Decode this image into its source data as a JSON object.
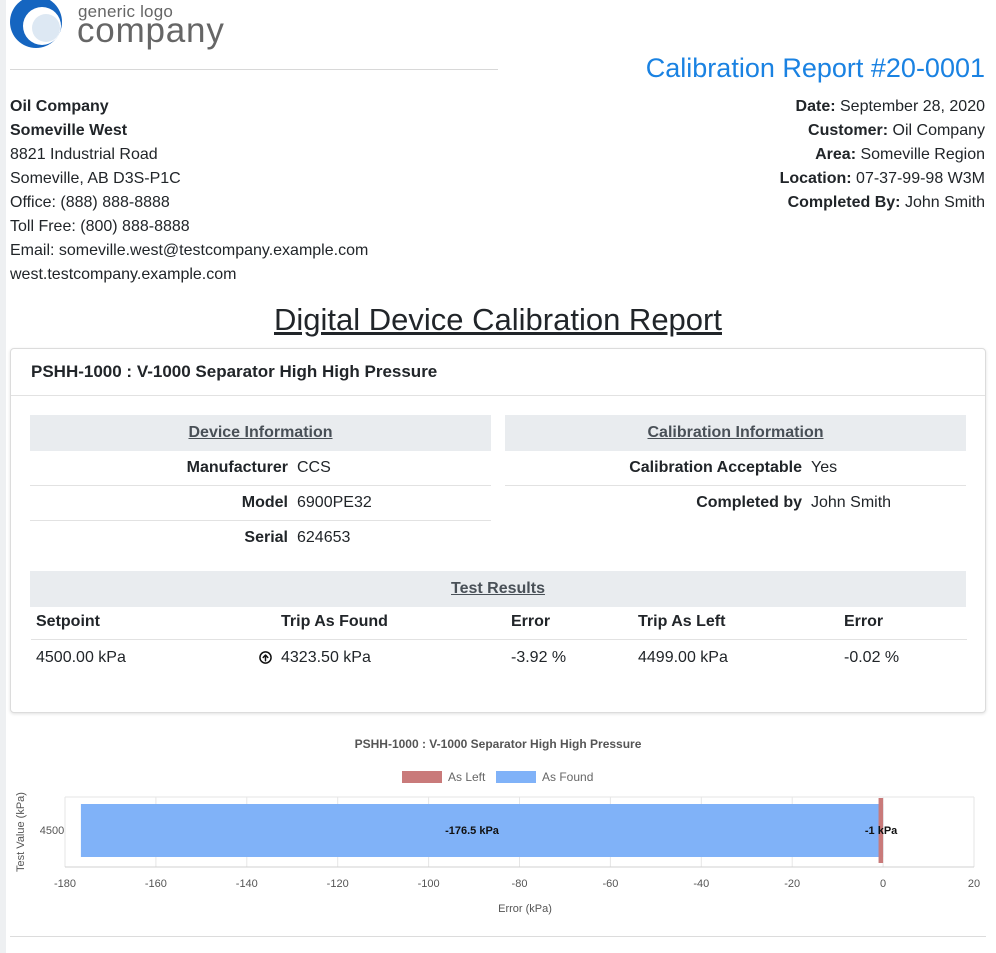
{
  "logo": {
    "small_text": "generic logo",
    "big_text": "company"
  },
  "report_title": "Calibration Report #20-0001",
  "address": {
    "company": "Oil Company",
    "branch": "Someville West",
    "street": "8821 Industrial Road",
    "city": "Someville, AB D3S-P1C",
    "office": "Office: (888) 888-8888",
    "toll_free": "Toll Free: (800) 888-8888",
    "email": "Email: someville.west@testcompany.example.com",
    "website": "west.testcompany.example.com"
  },
  "meta": [
    {
      "label": "Date:",
      "value": "September 28, 2020"
    },
    {
      "label": "Customer:",
      "value": "Oil Company"
    },
    {
      "label": "Area:",
      "value": "Someville Region"
    },
    {
      "label": "Location:",
      "value": "07-37-99-98 W3M"
    },
    {
      "label": "Completed By:",
      "value": "John Smith"
    }
  ],
  "document_title": "Digital Device Calibration Report",
  "device": {
    "name": "PSHH-1000 : V-1000 Separator High High Pressure",
    "device_info": {
      "heading": "Device Information",
      "rows": [
        {
          "label": "Manufacturer",
          "value": "CCS"
        },
        {
          "label": "Model",
          "value": "6900PE32"
        },
        {
          "label": "Serial",
          "value": "624653"
        }
      ]
    },
    "calibration_info": {
      "heading": "Calibration Information",
      "rows": [
        {
          "label": "Calibration Acceptable",
          "value": "Yes"
        },
        {
          "label": "Completed by",
          "value": "John Smith"
        }
      ]
    },
    "test_results": {
      "heading": "Test Results",
      "columns": [
        "Setpoint",
        "Trip As Found",
        "Error",
        "Trip As Left",
        "Error"
      ],
      "rows": [
        {
          "setpoint": "4500.00 kPa",
          "trip_as_found": "4323.50 kPa",
          "error_found": "-3.92 %",
          "trip_as_left": "4499.00 kPa",
          "error_left": "-0.02 %",
          "found_icon": "arrow-up-circle-icon"
        }
      ]
    }
  },
  "chart_data": {
    "type": "bar",
    "orientation": "horizontal",
    "title": "PSHH-1000 : V-1000 Separator High High Pressure",
    "xlabel": "Error (kPa)",
    "ylabel": "Test Value (kPa)",
    "categories": [
      "4500"
    ],
    "series": [
      {
        "name": "As Left",
        "values": [
          -1
        ],
        "label": "-1 kPa",
        "color": "#c97a7a"
      },
      {
        "name": "As Found",
        "values": [
          -176.5
        ],
        "label": "-176.5 kPa",
        "color": "#80b2f8"
      }
    ],
    "xlim": [
      -180,
      20
    ],
    "xticks": [
      -180,
      -160,
      -140,
      -120,
      -100,
      -80,
      -60,
      -40,
      -20,
      0,
      20
    ],
    "grid": true,
    "legend": "top-center"
  }
}
